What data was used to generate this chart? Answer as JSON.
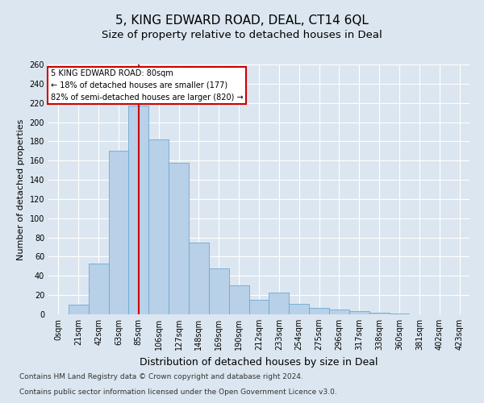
{
  "title1": "5, KING EDWARD ROAD, DEAL, CT14 6QL",
  "title2": "Size of property relative to detached houses in Deal",
  "xlabel": "Distribution of detached houses by size in Deal",
  "ylabel": "Number of detached properties",
  "categories": [
    "0sqm",
    "21sqm",
    "42sqm",
    "63sqm",
    "85sqm",
    "106sqm",
    "127sqm",
    "148sqm",
    "169sqm",
    "190sqm",
    "212sqm",
    "233sqm",
    "254sqm",
    "275sqm",
    "296sqm",
    "317sqm",
    "338sqm",
    "360sqm",
    "381sqm",
    "402sqm",
    "423sqm"
  ],
  "values": [
    0,
    10,
    53,
    170,
    217,
    182,
    158,
    75,
    48,
    30,
    15,
    23,
    11,
    7,
    5,
    3,
    2,
    1,
    0,
    0,
    0
  ],
  "bar_color": "#b8d0e8",
  "bar_edgecolor": "#6aaad4",
  "redline_index": 4,
  "ylim": [
    0,
    260
  ],
  "yticks": [
    0,
    20,
    40,
    60,
    80,
    100,
    120,
    140,
    160,
    180,
    200,
    220,
    240,
    260
  ],
  "annotation_title": "5 KING EDWARD ROAD: 80sqm",
  "annotation_line1": "← 18% of detached houses are smaller (177)",
  "annotation_line2": "82% of semi-detached houses are larger (820) →",
  "annotation_color": "#cc0000",
  "footer1": "Contains HM Land Registry data © Crown copyright and database right 2024.",
  "footer2": "Contains public sector information licensed under the Open Government Licence v3.0.",
  "bg_color": "#dce6f0",
  "plot_bg_color": "#dce6f0",
  "grid_color": "#ffffff",
  "title1_fontsize": 11,
  "title2_fontsize": 9.5,
  "xlabel_fontsize": 9,
  "ylabel_fontsize": 8,
  "tick_fontsize": 7,
  "footer_fontsize": 6.5
}
